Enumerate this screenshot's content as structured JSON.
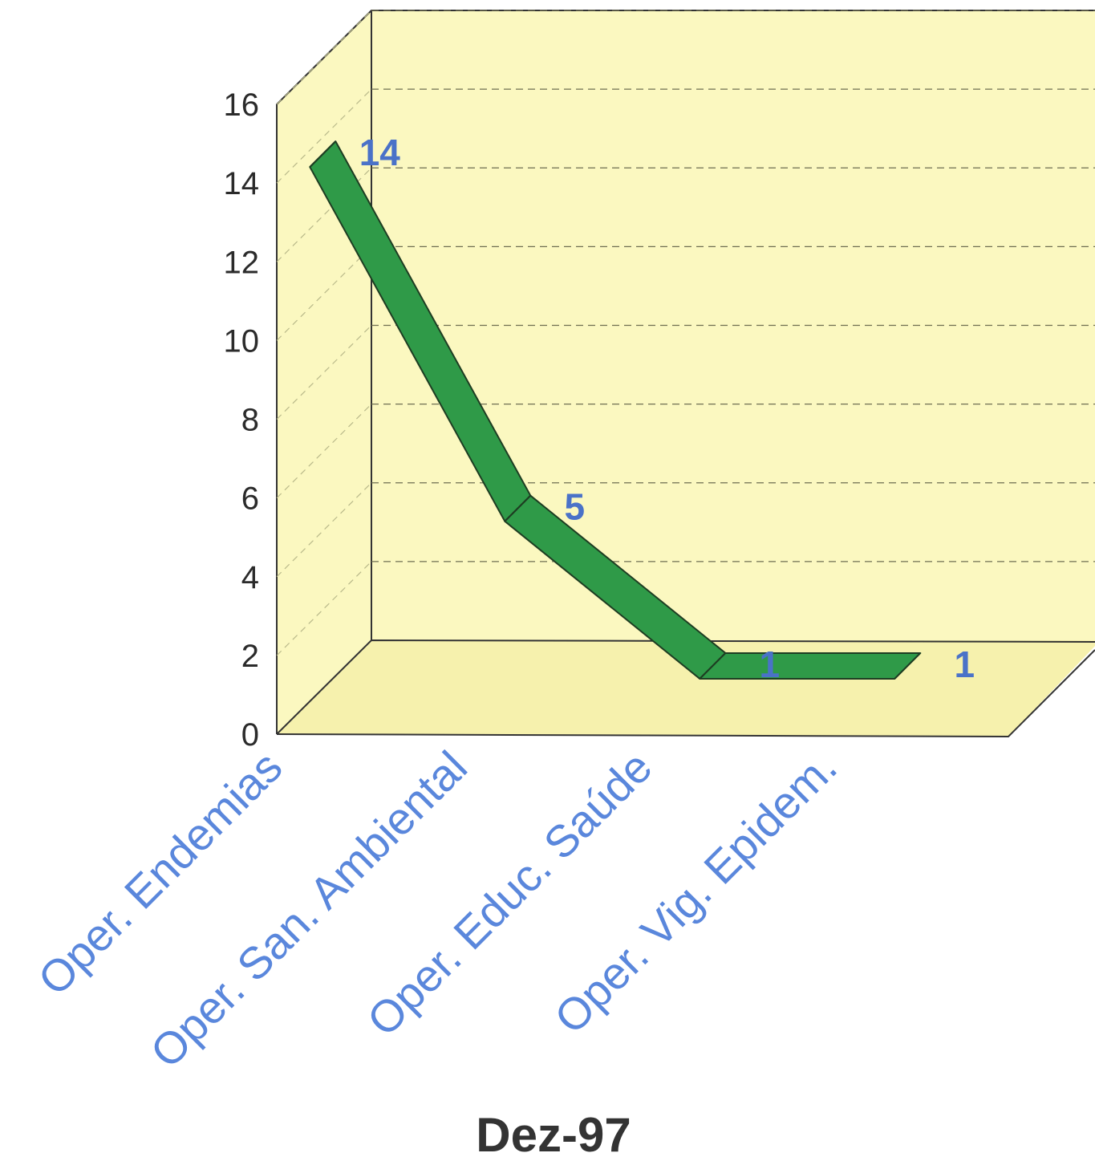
{
  "chart_data": {
    "type": "line",
    "categories": [
      "Oper. Endemias",
      "Oper. San. Ambiental",
      "Oper. Educ. Saúde",
      "Oper. Vig. Epidem."
    ],
    "values": [
      14,
      5,
      1,
      1
    ],
    "data_labels": [
      "14",
      "5",
      "1",
      "1"
    ],
    "yticks": [
      "0",
      "2",
      "4",
      "6",
      "8",
      "10",
      "12",
      "14",
      "16"
    ],
    "ylim": [
      0,
      16
    ],
    "xlabel": "Dez-97",
    "title": "",
    "ylabel": "",
    "grid": true,
    "legend": "none",
    "three_d": true,
    "colors": {
      "line": "#2f9a48",
      "wall": "#fbf8c0",
      "floor": "#f6f1ad",
      "axis": "#333333",
      "labels": "#5a87dc",
      "data_labels": "#4a72c8"
    }
  }
}
